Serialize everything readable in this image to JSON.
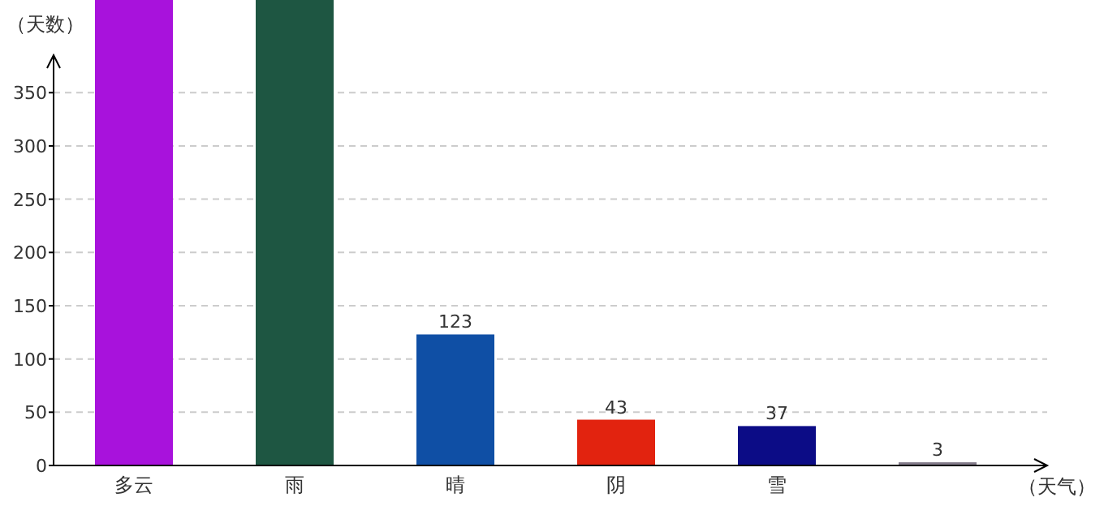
{
  "chart_data": {
    "type": "bar",
    "ylabel": "（天数）",
    "xlabel": "（天气）",
    "categories": [
      "多云",
      "雨",
      "晴",
      "阴",
      "雪",
      null
    ],
    "values": [
      437,
      437,
      123,
      43,
      37,
      3
    ],
    "colors": [
      "#a812dc",
      "#1e5642",
      "#0f4fa5",
      "#e2230f",
      "#0c0c86",
      "#837b8a"
    ],
    "value_labels": [
      null,
      null,
      "123",
      "43",
      "37",
      "3"
    ],
    "ylim": [
      0,
      437
    ],
    "yticks": [
      0,
      50,
      100,
      150,
      200,
      250,
      300,
      350
    ],
    "grid": "y"
  }
}
